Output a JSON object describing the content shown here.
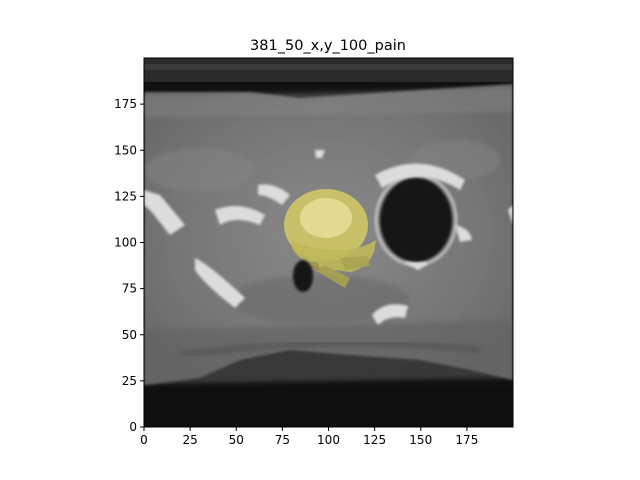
{
  "figure": {
    "title": "381_50_x,y_100_pain"
  },
  "axes": {
    "x_ticks": [
      "0",
      "25",
      "50",
      "75",
      "100",
      "125",
      "150",
      "175"
    ],
    "y_ticks": [
      "0",
      "25",
      "50",
      "75",
      "100",
      "125",
      "150",
      "175"
    ],
    "xlim": [
      0,
      200
    ],
    "ylim": [
      0,
      200
    ],
    "grid": false
  },
  "overlay": {
    "color": "#d8d26a",
    "description_visible": false
  },
  "colors": {
    "background_air": "#0d0d0d",
    "soft_tissue": "#7a7a7a",
    "bone": "#e6e6e6",
    "mask_yellow": "#cfc866"
  }
}
